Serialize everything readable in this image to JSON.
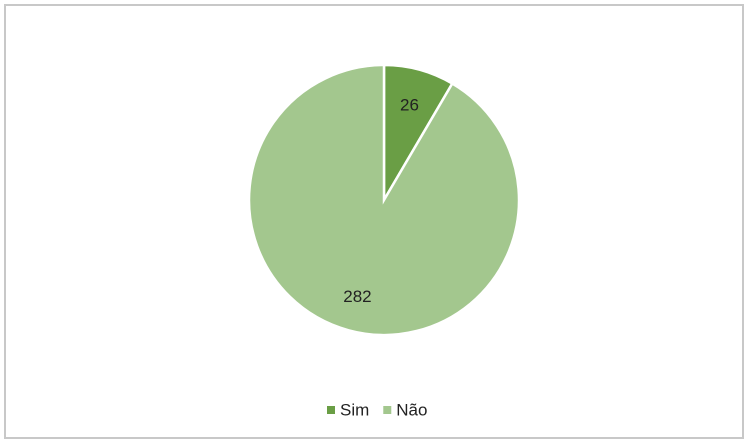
{
  "chart_data": {
    "type": "pie",
    "categories": [
      "Sim",
      "Não"
    ],
    "values": [
      26,
      282
    ],
    "colors": [
      "#6a9e45",
      "#a3c78e"
    ],
    "legend": "bottom"
  }
}
